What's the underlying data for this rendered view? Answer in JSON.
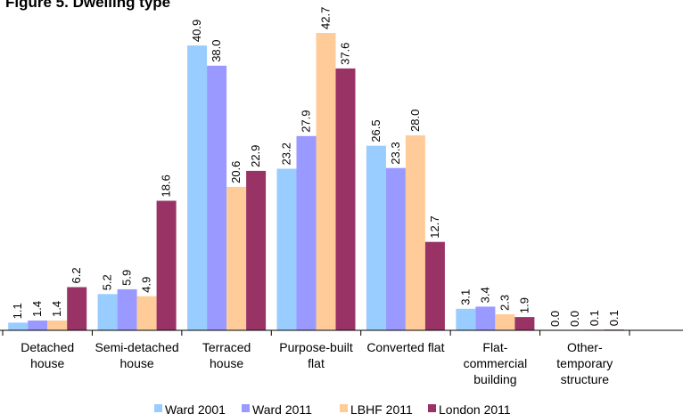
{
  "chart_data": {
    "type": "bar",
    "title": "Figure 5. Dwelling type",
    "categories": [
      [
        "Detached",
        "house"
      ],
      [
        "Semi-detached",
        "house"
      ],
      [
        "Terraced",
        "house"
      ],
      [
        "Purpose-built",
        "flat"
      ],
      [
        "Converted flat"
      ],
      [
        "Flat-",
        "commercial",
        "building"
      ],
      [
        "Other-",
        "temporary",
        "structure"
      ]
    ],
    "series": [
      {
        "name": "Ward 2001",
        "color": "#99ccff",
        "values": [
          1.1,
          5.2,
          40.9,
          23.2,
          26.5,
          3.1,
          0.0
        ]
      },
      {
        "name": "Ward 2011",
        "color": "#9999ff",
        "values": [
          1.4,
          5.9,
          38.0,
          27.9,
          23.3,
          3.4,
          0.0
        ]
      },
      {
        "name": "LBHF 2011",
        "color": "#ffcc99",
        "values": [
          1.4,
          4.9,
          20.6,
          42.7,
          28.0,
          2.3,
          0.1
        ]
      },
      {
        "name": "London 2011",
        "color": "#993366",
        "values": [
          6.2,
          18.6,
          22.9,
          37.6,
          12.7,
          1.9,
          0.1
        ]
      }
    ],
    "ylim": [
      0,
      45
    ],
    "value_label_decimals": 1,
    "legend_position": "bottom"
  }
}
